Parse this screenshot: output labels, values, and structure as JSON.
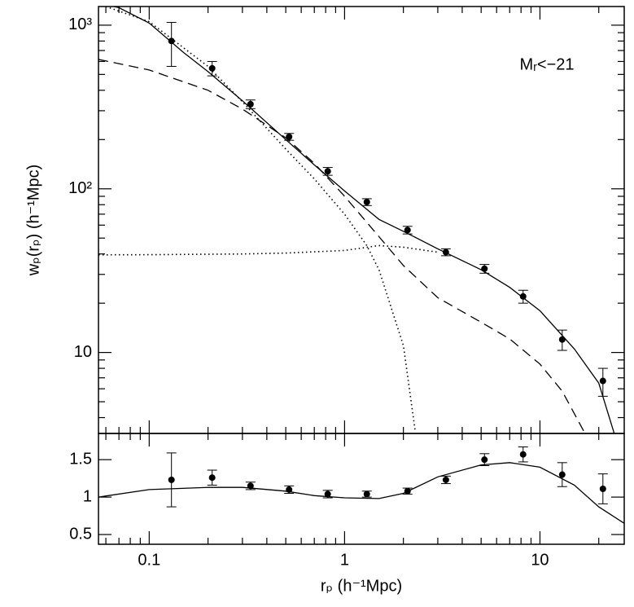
{
  "chart_data": [
    {
      "type": "line",
      "ylabel": "wₚ(rₚ)  (h⁻¹Mpc)",
      "annotation": "Mᵣ<−21",
      "xlog": true,
      "ylog": true,
      "xlim": [
        0.055,
        27
      ],
      "ylim": [
        3.2,
        1300
      ],
      "yticks": [
        {
          "value": 10,
          "label": "10"
        },
        {
          "value": 100,
          "label": "10²"
        },
        {
          "value": 1000,
          "label": "10³"
        }
      ],
      "yminor": [
        4,
        5,
        6,
        7,
        8,
        9,
        20,
        30,
        40,
        50,
        60,
        70,
        80,
        90,
        200,
        300,
        400,
        500,
        600,
        700,
        800,
        900
      ],
      "points": {
        "color": "#000000",
        "x": [
          0.13,
          0.21,
          0.33,
          0.52,
          0.82,
          1.3,
          2.1,
          3.3,
          5.2,
          8.2,
          13,
          21
        ],
        "values": [
          800,
          545,
          329,
          208,
          128,
          83,
          56,
          41,
          32.5,
          22,
          12,
          6.7
        ],
        "errors": [
          240,
          55,
          20,
          10,
          7,
          4,
          3,
          2,
          2,
          2,
          1.7,
          1.3
        ]
      },
      "series": [
        {
          "style": "solid",
          "color": "#000000",
          "x": [
            0.066,
            0.07,
            0.1,
            0.15,
            0.2,
            0.3,
            0.5,
            0.7,
            1,
            1.5,
            2,
            3,
            5,
            7,
            10,
            15,
            20,
            24
          ],
          "values": [
            1300,
            1280,
            1030,
            680,
            520,
            345,
            200,
            140,
            97,
            65,
            55,
            43,
            32,
            25,
            18,
            10.5,
            6.5,
            3.2
          ]
        },
        {
          "style": "dashed",
          "color": "#000000",
          "x": [
            0.055,
            0.1,
            0.2,
            0.3,
            0.5,
            0.7,
            1,
            1.5,
            2,
            3,
            5,
            7,
            10,
            13,
            17
          ],
          "values": [
            618,
            532,
            400,
            307,
            205,
            143,
            90,
            51,
            34,
            21.6,
            15.3,
            12.1,
            8.5,
            5.8,
            3.2
          ]
        },
        {
          "style": "dotted",
          "color": "#000000",
          "x": [
            0.06,
            0.1,
            0.2,
            0.3,
            0.5,
            0.7,
            1,
            1.3,
            1.5,
            2,
            2.3
          ],
          "values": [
            1300,
            1050,
            560,
            340,
            175,
            115,
            70,
            45,
            32,
            11,
            3.3
          ]
        },
        {
          "style": "dotted",
          "color": "#000000",
          "x": [
            0.055,
            0.1,
            0.3,
            0.5,
            1,
            1.5,
            2,
            3
          ],
          "values": [
            39.5,
            39.6,
            40,
            40.5,
            42,
            45,
            44,
            41
          ]
        }
      ]
    },
    {
      "type": "line",
      "xlabel": "rₚ  (h⁻¹Mpc)",
      "xlog": true,
      "ylog": false,
      "xlim": [
        0.055,
        27
      ],
      "ylim": [
        0.37,
        1.85
      ],
      "xticks": [
        0.1,
        1,
        10
      ],
      "xminor": [
        0.06,
        0.07,
        0.08,
        0.09,
        0.2,
        0.3,
        0.4,
        0.5,
        0.6,
        0.7,
        0.8,
        0.9,
        2,
        3,
        4,
        5,
        6,
        7,
        8,
        9,
        20
      ],
      "yticks": [
        0.5,
        1,
        1.5
      ],
      "points": {
        "color": "#000000",
        "x": [
          0.13,
          0.21,
          0.33,
          0.52,
          0.82,
          1.3,
          2.1,
          3.3,
          5.2,
          8.2,
          13,
          21
        ],
        "values": [
          1.23,
          1.26,
          1.15,
          1.1,
          1.04,
          1.04,
          1.08,
          1.23,
          1.5,
          1.57,
          1.3,
          1.11
        ],
        "errors": [
          0.36,
          0.1,
          0.05,
          0.05,
          0.05,
          0.04,
          0.04,
          0.05,
          0.08,
          0.1,
          0.16,
          0.2
        ]
      },
      "series": [
        {
          "style": "solid",
          "color": "#000000",
          "x": [
            0.055,
            0.1,
            0.2,
            0.3,
            0.5,
            0.7,
            1,
            1.5,
            2,
            3,
            5,
            7,
            10,
            15,
            20,
            27
          ],
          "values": [
            1.0,
            1.1,
            1.13,
            1.13,
            1.08,
            1.02,
            0.99,
            0.98,
            1.05,
            1.27,
            1.43,
            1.46,
            1.4,
            1.16,
            0.87,
            0.65
          ]
        }
      ]
    }
  ]
}
